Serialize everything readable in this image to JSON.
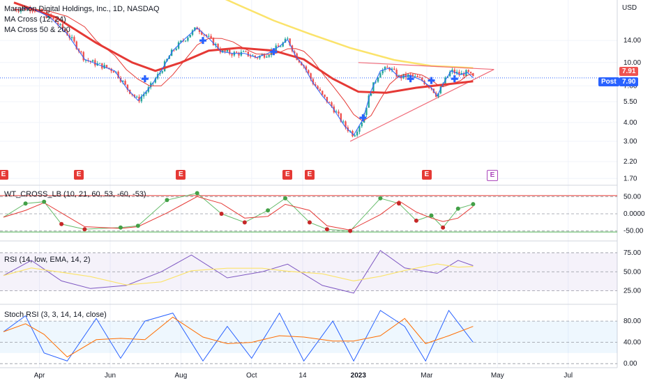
{
  "legends": {
    "symbol": "Marathon Digital Holdings, Inc., 1D, NASDAQ",
    "ma_cross_1": "MA Cross (12, 24)",
    "ma_cross_2": "MA Cross 50 & 200",
    "wt": "WT_CROSS_LB (10, 21, 60, 53, -60, -53)",
    "rsi": "RSI (14, low, EMA, 14, 2)",
    "stoch": "Stoch RSI (3, 3, 14, 14, close)"
  },
  "price_tags": {
    "last": "7.91",
    "post_label": "Post",
    "post_value": "7.90"
  },
  "earnings_marker": "E",
  "colors": {
    "up": "#26a69a",
    "down": "#ef5350",
    "ma50": "#e53935",
    "ma200": "#fbe36b",
    "fast": "#2962ff",
    "slow": "#e53935",
    "trend": "#f06a78",
    "blue_tag": "#2962ff",
    "wt_main": "#66bb6a",
    "wt_sig": "#e53935",
    "rsi": "#7e57c2",
    "rsi_ma": "#fbe36b",
    "stoch_k": "#2962ff",
    "stoch_d": "#ff6d00",
    "earn_red": "#e53935",
    "earn_violet": "#ab47bc"
  },
  "chart_data": {
    "type": "line",
    "title": "Marathon Digital Holdings, Inc., 1D, NASDAQ",
    "price_axis": {
      "unit": "USD",
      "scale": "log",
      "ticks": [
        "14.00",
        "10.00",
        "7.00",
        "5.50",
        "4.00",
        "3.00",
        "2.20",
        "1.70"
      ]
    },
    "time_axis": {
      "labels": [
        "Apr",
        "Jun",
        "Aug",
        "Oct",
        "14",
        "2023",
        "Mar",
        "May",
        "Jul"
      ]
    },
    "close_series": [
      {
        "t": "2022-03-10",
        "v": 22.5
      },
      {
        "t": "2022-03-25",
        "v": 23.0
      },
      {
        "t": "2022-04-10",
        "v": 20.0
      },
      {
        "t": "2022-04-25",
        "v": 15.5
      },
      {
        "t": "2022-05-10",
        "v": 10.5
      },
      {
        "t": "2022-05-20",
        "v": 9.8
      },
      {
        "t": "2022-06-05",
        "v": 8.8
      },
      {
        "t": "2022-06-15",
        "v": 6.8
      },
      {
        "t": "2022-06-25",
        "v": 5.6
      },
      {
        "t": "2022-07-05",
        "v": 6.8
      },
      {
        "t": "2022-07-15",
        "v": 8.8
      },
      {
        "t": "2022-07-25",
        "v": 12.0
      },
      {
        "t": "2022-08-05",
        "v": 14.5
      },
      {
        "t": "2022-08-15",
        "v": 17.0
      },
      {
        "t": "2022-08-25",
        "v": 14.5
      },
      {
        "t": "2022-09-05",
        "v": 11.8
      },
      {
        "t": "2022-09-15",
        "v": 11.5
      },
      {
        "t": "2022-09-25",
        "v": 11.5
      },
      {
        "t": "2022-10-05",
        "v": 10.8
      },
      {
        "t": "2022-10-15",
        "v": 11.5
      },
      {
        "t": "2022-10-25",
        "v": 12.8
      },
      {
        "t": "2022-11-01",
        "v": 14.2
      },
      {
        "t": "2022-11-08",
        "v": 11.0
      },
      {
        "t": "2022-11-15",
        "v": 9.5
      },
      {
        "t": "2022-11-22",
        "v": 7.5
      },
      {
        "t": "2022-12-01",
        "v": 6.0
      },
      {
        "t": "2022-12-10",
        "v": 5.0
      },
      {
        "t": "2022-12-20",
        "v": 3.8
      },
      {
        "t": "2022-12-28",
        "v": 3.3
      },
      {
        "t": "2023-01-05",
        "v": 4.2
      },
      {
        "t": "2023-01-12",
        "v": 6.5
      },
      {
        "t": "2023-01-20",
        "v": 8.8
      },
      {
        "t": "2023-01-28",
        "v": 9.2
      },
      {
        "t": "2023-02-05",
        "v": 8.0
      },
      {
        "t": "2023-02-15",
        "v": 8.2
      },
      {
        "t": "2023-02-25",
        "v": 7.6
      },
      {
        "t": "2023-03-05",
        "v": 6.8
      },
      {
        "t": "2023-03-10",
        "v": 6.0
      },
      {
        "t": "2023-03-15",
        "v": 7.2
      },
      {
        "t": "2023-03-22",
        "v": 8.8
      },
      {
        "t": "2023-03-30",
        "v": 8.3
      },
      {
        "t": "2023-04-05",
        "v": 8.6
      },
      {
        "t": "2023-04-10",
        "v": 7.91
      }
    ],
    "ma50": [
      {
        "t": "2022-03-10",
        "v": 25.0
      },
      {
        "t": "2022-04-15",
        "v": 20.0
      },
      {
        "t": "2022-05-20",
        "v": 13.5
      },
      {
        "t": "2022-06-20",
        "v": 10.0
      },
      {
        "t": "2022-07-10",
        "v": 8.8
      },
      {
        "t": "2022-08-01",
        "v": 10.0
      },
      {
        "t": "2022-08-25",
        "v": 12.0
      },
      {
        "t": "2022-09-20",
        "v": 12.5
      },
      {
        "t": "2022-10-20",
        "v": 12.0
      },
      {
        "t": "2022-11-15",
        "v": 10.5
      },
      {
        "t": "2022-12-10",
        "v": 7.8
      },
      {
        "t": "2023-01-01",
        "v": 6.4
      },
      {
        "t": "2023-01-25",
        "v": 6.3
      },
      {
        "t": "2023-02-20",
        "v": 6.8
      },
      {
        "t": "2023-03-20",
        "v": 7.2
      },
      {
        "t": "2023-04-10",
        "v": 7.5
      }
    ],
    "ma200": [
      {
        "t": "2022-08-15",
        "v": 32.0
      },
      {
        "t": "2022-09-20",
        "v": 24.0
      },
      {
        "t": "2022-10-20",
        "v": 19.0
      },
      {
        "t": "2022-11-20",
        "v": 15.5
      },
      {
        "t": "2022-12-25",
        "v": 12.5
      },
      {
        "t": "2023-02-01",
        "v": 10.4
      },
      {
        "t": "2023-03-05",
        "v": 9.5
      },
      {
        "t": "2023-04-10",
        "v": 9.2
      }
    ],
    "trendlines": [
      {
        "from": {
          "t": "2023-01-01",
          "v": 10.0
        },
        "to": {
          "t": "2023-04-28",
          "v": 9.0
        }
      },
      {
        "from": {
          "t": "2022-12-25",
          "v": 3.0
        },
        "to": {
          "t": "2023-04-28",
          "v": 9.0
        }
      }
    ],
    "ma_cross_markers": [
      {
        "t": "2022-07-01",
        "v": 7.8
      },
      {
        "t": "2022-08-20",
        "v": 14.0
      },
      {
        "t": "2022-10-20",
        "v": 11.8
      },
      {
        "t": "2023-01-05",
        "v": 4.3
      },
      {
        "t": "2023-02-15",
        "v": 7.8
      },
      {
        "t": "2023-03-05",
        "v": 7.6
      },
      {
        "t": "2023-03-25",
        "v": 7.8
      }
    ],
    "earnings_dates": [
      "2022-03-01",
      "2022-05-05",
      "2022-08-01",
      "2022-11-01",
      "2022-11-20",
      "2023-03-01",
      "2023-04-26"
    ],
    "wt_cross": {
      "axis_ticks": [
        "50.00",
        "0.0000",
        "-50.00"
      ],
      "overbought": 53,
      "oversold": -53,
      "series": [
        {
          "t": "2022-03-01",
          "v": -10
        },
        {
          "t": "2022-03-20",
          "v": 30
        },
        {
          "t": "2022-04-05",
          "v": 35
        },
        {
          "t": "2022-04-20",
          "v": -30
        },
        {
          "t": "2022-05-10",
          "v": -45
        },
        {
          "t": "2022-06-10",
          "v": -40
        },
        {
          "t": "2022-06-25",
          "v": -35
        },
        {
          "t": "2022-07-20",
          "v": 40
        },
        {
          "t": "2022-08-15",
          "v": 60
        },
        {
          "t": "2022-09-05",
          "v": 0
        },
        {
          "t": "2022-09-25",
          "v": -25
        },
        {
          "t": "2022-10-15",
          "v": 10
        },
        {
          "t": "2022-10-30",
          "v": 45
        },
        {
          "t": "2022-11-20",
          "v": -25
        },
        {
          "t": "2022-12-05",
          "v": -45
        },
        {
          "t": "2022-12-25",
          "v": -50
        },
        {
          "t": "2023-01-20",
          "v": 45
        },
        {
          "t": "2023-02-05",
          "v": 30
        },
        {
          "t": "2023-02-20",
          "v": -20
        },
        {
          "t": "2023-03-05",
          "v": -5
        },
        {
          "t": "2023-03-15",
          "v": -40
        },
        {
          "t": "2023-03-28",
          "v": 15
        },
        {
          "t": "2023-04-10",
          "v": 28
        }
      ]
    },
    "rsi": {
      "axis_ticks": [
        "75.00",
        "50.00",
        "25.00"
      ],
      "series": [
        {
          "t": "2022-03-01",
          "v": 45
        },
        {
          "t": "2022-03-25",
          "v": 65
        },
        {
          "t": "2022-04-20",
          "v": 38
        },
        {
          "t": "2022-05-15",
          "v": 28
        },
        {
          "t": "2022-06-15",
          "v": 32
        },
        {
          "t": "2022-07-15",
          "v": 50
        },
        {
          "t": "2022-08-10",
          "v": 72
        },
        {
          "t": "2022-09-10",
          "v": 42
        },
        {
          "t": "2022-10-10",
          "v": 50
        },
        {
          "t": "2022-11-01",
          "v": 60
        },
        {
          "t": "2022-12-01",
          "v": 32
        },
        {
          "t": "2022-12-28",
          "v": 22
        },
        {
          "t": "2023-01-20",
          "v": 78
        },
        {
          "t": "2023-02-10",
          "v": 55
        },
        {
          "t": "2023-03-10",
          "v": 48
        },
        {
          "t": "2023-03-28",
          "v": 65
        },
        {
          "t": "2023-04-10",
          "v": 58
        }
      ]
    },
    "stoch_rsi": {
      "axis_ticks": [
        "80.00",
        "40.00",
        "0.00"
      ],
      "k": [
        {
          "t": "2022-03-01",
          "v": 60
        },
        {
          "t": "2022-03-20",
          "v": 90
        },
        {
          "t": "2022-04-05",
          "v": 20
        },
        {
          "t": "2022-04-25",
          "v": 5
        },
        {
          "t": "2022-05-20",
          "v": 85
        },
        {
          "t": "2022-06-10",
          "v": 10
        },
        {
          "t": "2022-07-01",
          "v": 80
        },
        {
          "t": "2022-07-25",
          "v": 95
        },
        {
          "t": "2022-08-20",
          "v": 5
        },
        {
          "t": "2022-09-10",
          "v": 70
        },
        {
          "t": "2022-10-01",
          "v": 10
        },
        {
          "t": "2022-10-25",
          "v": 95
        },
        {
          "t": "2022-11-15",
          "v": 5
        },
        {
          "t": "2022-12-10",
          "v": 80
        },
        {
          "t": "2022-12-28",
          "v": 5
        },
        {
          "t": "2023-01-20",
          "v": 100
        },
        {
          "t": "2023-02-10",
          "v": 70
        },
        {
          "t": "2023-02-28",
          "v": 5
        },
        {
          "t": "2023-03-20",
          "v": 100
        },
        {
          "t": "2023-04-10",
          "v": 40
        }
      ]
    }
  }
}
